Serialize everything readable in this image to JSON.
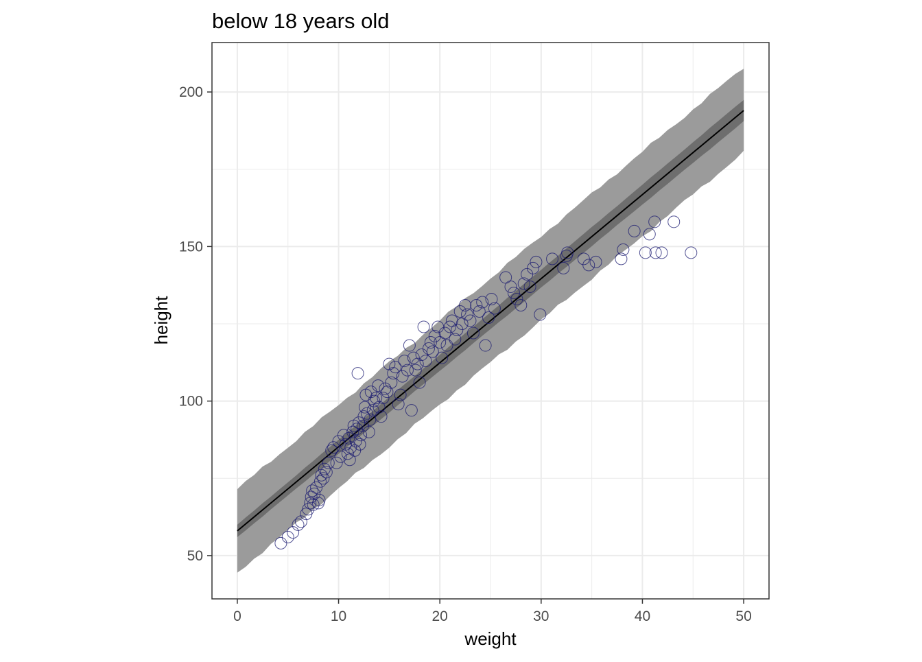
{
  "chart_data": {
    "type": "scatter",
    "title": "below 18 years old",
    "xlabel": "weight",
    "ylabel": "height",
    "xlim": [
      -2.5,
      52.5
    ],
    "ylim": [
      36,
      216
    ],
    "x_ticks": [
      0,
      10,
      20,
      30,
      40,
      50
    ],
    "x_tick_labels": [
      "0",
      "10",
      "20",
      "30",
      "40",
      "50"
    ],
    "y_ticks": [
      50,
      100,
      150,
      200
    ],
    "y_tick_labels": [
      "50",
      "100",
      "150",
      "200"
    ],
    "grid": true,
    "legend": "none",
    "colors": {
      "points": "#191970",
      "line": "#000000",
      "prediction_band": "#9b9b9b",
      "confidence_band": "#6e6e6e",
      "grid": "#ebebeb",
      "panel_border": "#333333"
    },
    "fit_line": {
      "x": [
        0,
        50
      ],
      "y": [
        58,
        194
      ]
    },
    "confidence_band": {
      "x": [
        0,
        50
      ],
      "lower": [
        56,
        190.5
      ],
      "upper": [
        60,
        197.5
      ]
    },
    "prediction_band": {
      "x": [
        0,
        50
      ],
      "lower": [
        44.5,
        180.5
      ],
      "upper": [
        71.5,
        208
      ]
    },
    "series": [
      {
        "x": [
          4.3,
          5.0,
          5.5,
          6.0,
          6.3,
          6.8,
          7.0,
          7.2,
          7.3,
          7.4,
          7.5,
          7.6,
          7.8,
          8.0,
          8.1,
          8.2,
          8.3,
          8.5,
          8.6,
          8.8,
          9.0,
          9.3,
          9.5,
          9.8,
          10.0,
          10.2,
          10.5,
          10.7,
          10.9,
          11.0,
          11.1,
          11.2,
          11.4,
          11.5,
          11.6,
          11.7,
          11.8,
          11.9,
          12.0,
          12.1,
          12.2,
          12.4,
          12.5,
          12.6,
          12.7,
          12.8,
          13.0,
          13.1,
          13.2,
          13.4,
          13.5,
          13.7,
          13.9,
          14.0,
          14.2,
          14.4,
          14.6,
          14.8,
          15.0,
          15.2,
          15.4,
          15.6,
          15.9,
          16.1,
          16.3,
          16.5,
          16.8,
          17.0,
          17.2,
          17.4,
          17.6,
          17.8,
          18.0,
          18.2,
          18.4,
          18.6,
          18.9,
          19.1,
          19.3,
          19.5,
          19.8,
          20.0,
          20.2,
          20.5,
          20.7,
          21.0,
          21.2,
          21.5,
          21.7,
          22.0,
          22.2,
          22.5,
          22.7,
          23.0,
          23.3,
          23.6,
          23.9,
          24.2,
          24.5,
          24.8,
          25.1,
          25.4,
          26.5,
          27.0,
          27.3,
          27.6,
          28.0,
          28.3,
          28.6,
          28.9,
          29.2,
          29.5,
          29.9,
          31.1,
          32.2,
          32.5,
          32.6,
          34.2,
          34.7,
          35.4,
          37.9,
          38.1,
          39.2,
          40.3,
          40.7,
          41.2,
          41.3,
          41.9,
          43.1,
          44.8
        ],
        "y": [
          54,
          56,
          57.5,
          60,
          61,
          63.5,
          65,
          67,
          69,
          71,
          66.5,
          70,
          72,
          67,
          68,
          74,
          76,
          75,
          78,
          77,
          80,
          84,
          85,
          80,
          87,
          82,
          89,
          86,
          83,
          88,
          81,
          85,
          90,
          92,
          84,
          87,
          91,
          109,
          93,
          86,
          89,
          92,
          95,
          98,
          102,
          96,
          90,
          94,
          103,
          97,
          100,
          101,
          105,
          98,
          95,
          101,
          104,
          103,
          112,
          106,
          109,
          111,
          99,
          102,
          108,
          113,
          110,
          118,
          97,
          114,
          110,
          112,
          106,
          115,
          124,
          113,
          117,
          119,
          116,
          121,
          124,
          119,
          114,
          122,
          118,
          124,
          126,
          120,
          123,
          129,
          125,
          131,
          128,
          126,
          122,
          131,
          129,
          132,
          118,
          127,
          133,
          130,
          140,
          137,
          135,
          133,
          131,
          138,
          141,
          137,
          143,
          145,
          128,
          146,
          143,
          147,
          148,
          146,
          144,
          145,
          146,
          149,
          155,
          148,
          154,
          158,
          148,
          148,
          158,
          148
        ]
      }
    ]
  }
}
